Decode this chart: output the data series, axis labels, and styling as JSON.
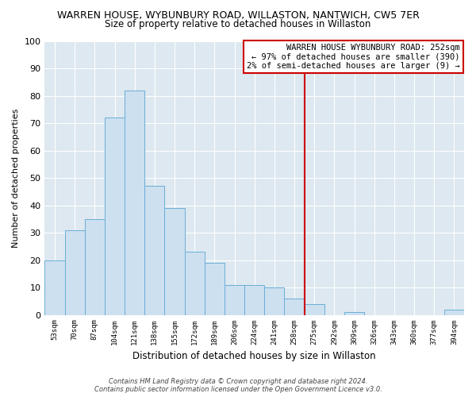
{
  "title": "WARREN HOUSE, WYBUNBURY ROAD, WILLASTON, NANTWICH, CW5 7ER",
  "subtitle": "Size of property relative to detached houses in Willaston",
  "xlabel": "Distribution of detached houses by size in Willaston",
  "ylabel": "Number of detached properties",
  "bar_labels": [
    "53sqm",
    "70sqm",
    "87sqm",
    "104sqm",
    "121sqm",
    "138sqm",
    "155sqm",
    "172sqm",
    "189sqm",
    "206sqm",
    "224sqm",
    "241sqm",
    "258sqm",
    "275sqm",
    "292sqm",
    "309sqm",
    "326sqm",
    "343sqm",
    "360sqm",
    "377sqm",
    "394sqm"
  ],
  "bar_values": [
    20,
    31,
    35,
    72,
    82,
    47,
    39,
    23,
    19,
    11,
    11,
    10,
    6,
    4,
    0,
    1,
    0,
    0,
    0,
    0,
    2
  ],
  "bar_color": "#cce0f0",
  "bar_edge_color": "#6aaed6",
  "vline_x": 12.5,
  "vline_color": "#cc0000",
  "ylim": [
    0,
    100
  ],
  "yticks": [
    0,
    10,
    20,
    30,
    40,
    50,
    60,
    70,
    80,
    90,
    100
  ],
  "annotation_title": "WARREN HOUSE WYBUNBURY ROAD: 252sqm",
  "annotation_line1": "← 97% of detached houses are smaller (390)",
  "annotation_line2": "2% of semi-detached houses are larger (9) →",
  "footer_line1": "Contains HM Land Registry data © Crown copyright and database right 2024.",
  "footer_line2": "Contains public sector information licensed under the Open Government Licence v3.0.",
  "plot_bg_color": "#dde8f0",
  "fig_bg_color": "#ffffff",
  "grid_color": "#ffffff",
  "title_fontsize": 9,
  "subtitle_fontsize": 8.5
}
